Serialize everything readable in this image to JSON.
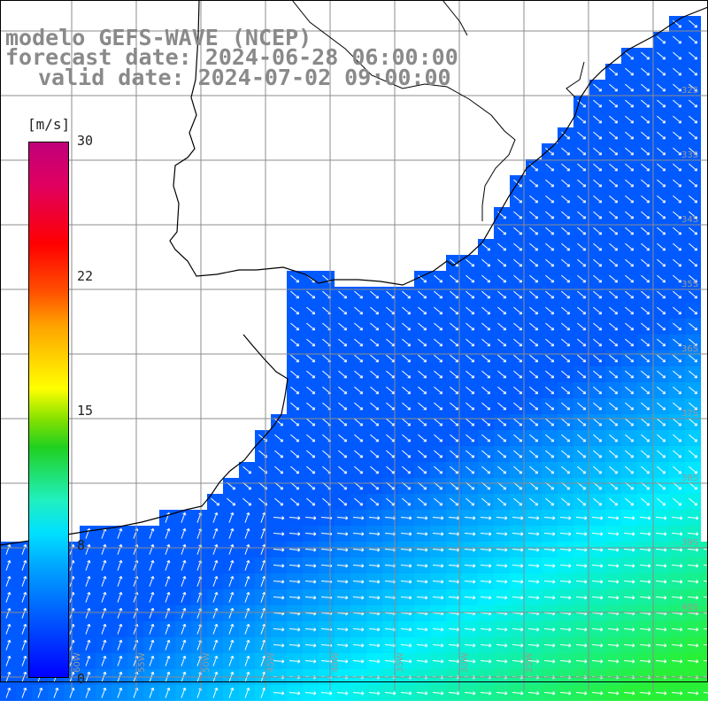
{
  "title": {
    "line1": "modelo GEFS-WAVE (NCEP)",
    "line2": "forecast date: 2024-06-28 06:00:00",
    "line3": "valid date: 2024-07-02 09:00:00"
  },
  "colorbar": {
    "units": "[m/s]",
    "min": 0,
    "max": 30,
    "ticks": [
      "30",
      "22",
      "15",
      "8",
      "0"
    ],
    "tick_values": [
      30,
      22,
      15,
      8,
      0
    ]
  },
  "map": {
    "longitude_labels": [
      "60W",
      "55W",
      "50W",
      "45W",
      "40W",
      "35W",
      "30W",
      "25W"
    ],
    "latitude_labels": [
      "32S",
      "33S",
      "34S",
      "35S",
      "36S",
      "37S",
      "38S",
      "39S",
      "40S"
    ],
    "grid_color": "#8c8c8c",
    "land_color": "#ffffff",
    "coast_color": "#000000",
    "arrow_color": "#ffffff"
  }
}
